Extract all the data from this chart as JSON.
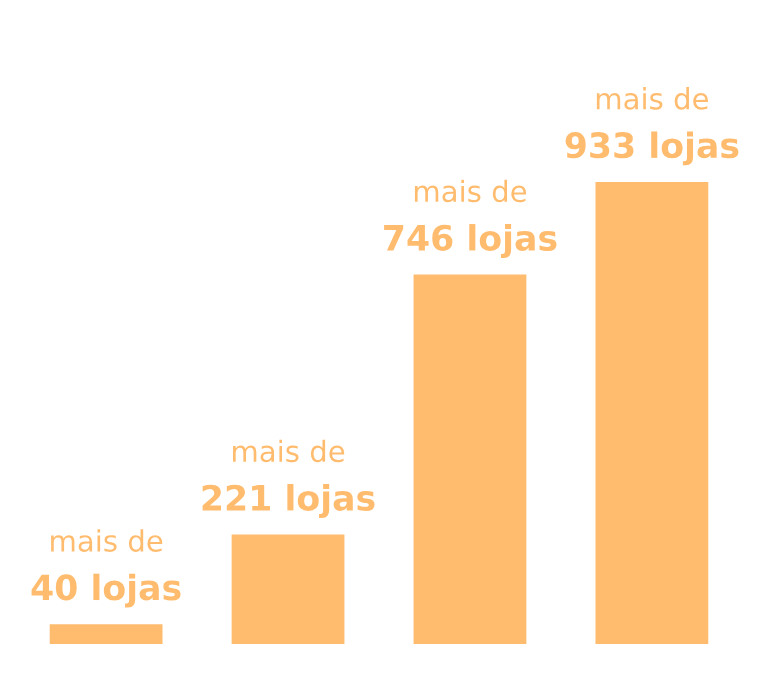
{
  "chart_data": {
    "type": "bar",
    "categories": [
      null,
      null,
      null,
      null
    ],
    "values": [
      40,
      221,
      746,
      933
    ],
    "color": "#ffbc6e",
    "value_labels": [
      "mais de\n40 lojas",
      "mais de\n221 lojas",
      "mais de\n746 lojas",
      "mais de\n933 lojas"
    ],
    "grid": false,
    "legend": false
  }
}
